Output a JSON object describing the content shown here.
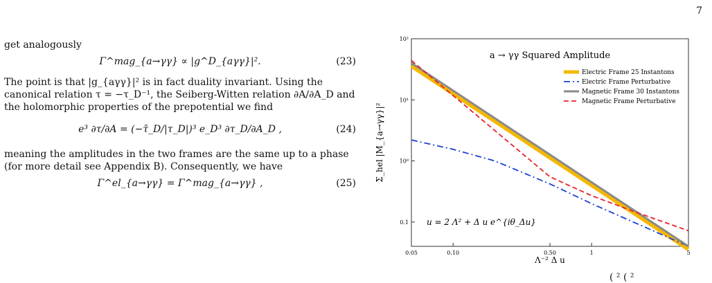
{
  "page_number": "7",
  "left_column": {
    "para1": "get analogously",
    "eq23": {
      "math": "Γ^mag_{a→γγ} ∝ |g^D_{aγγ}|².",
      "number": "(23)"
    },
    "para2": "The point is that |g_{aγγ}|² is in fact duality invariant. Using the canonical relation τ = −τ_D⁻¹, the Seiberg-Witten relation ∂A/∂A_D and the holomorphic properties of the prepotential we find",
    "eq24": {
      "math": "e³ ∂τ/∂A = (−τ̄_D/|τ_D|)³ e_D³ ∂τ_D/∂A_D ,",
      "number": "(24)"
    },
    "para3": "meaning the amplitudes in the two frames are the same up to a phase (for more detail see Appendix B). Consequently, we have",
    "eq25": {
      "math": "Γ^el_{a→γγ} = Γ^mag_{a→γγ} ,",
      "number": "(25)"
    }
  },
  "figure": {
    "annotation": "u = 2 Λ² + Δ u e^{iθ_Δu}",
    "caption_fragment": "(  ² (  ²"
  },
  "chart_data": {
    "type": "line",
    "title": "a → γγ Squared Amplitude",
    "xlabel": "Λ⁻² Δ u",
    "ylabel": "Σ_hel |M_{a→γγ}|²",
    "xscale": "log",
    "yscale": "log",
    "xlim": [
      0.05,
      5
    ],
    "ylim": [
      0.04,
      100
    ],
    "x_ticks": [
      "0.05",
      "0.10",
      "0.50",
      "1",
      "5"
    ],
    "y_ticks": [
      "10²",
      "10¹",
      "10⁰",
      "0.1"
    ],
    "grid": false,
    "legend_position": "top-right",
    "series": [
      {
        "name": "Electric Frame 25 Instantons",
        "color": "#f5b800",
        "style": "thick-solid",
        "x": [
          0.05,
          5
        ],
        "y": [
          36,
          0.036
        ]
      },
      {
        "name": "Electric Frame Perturbative",
        "color": "#1a3fd6",
        "style": "dashdot",
        "x": [
          0.05,
          0.1,
          0.2,
          0.5,
          1,
          2,
          5
        ],
        "y": [
          2.2,
          1.55,
          1.0,
          0.42,
          0.2,
          0.1,
          0.04
        ]
      },
      {
        "name": "Magnetic Frame 30 Instantons",
        "color": "#8a8a8a",
        "style": "solid",
        "x": [
          0.05,
          5
        ],
        "y": [
          40,
          0.04
        ]
      },
      {
        "name": "Magnetic Frame Perturbative",
        "color": "#e8202a",
        "style": "dashed",
        "x": [
          0.05,
          0.5,
          1,
          2,
          5
        ],
        "y": [
          44,
          0.55,
          0.27,
          0.15,
          0.072
        ]
      }
    ]
  }
}
